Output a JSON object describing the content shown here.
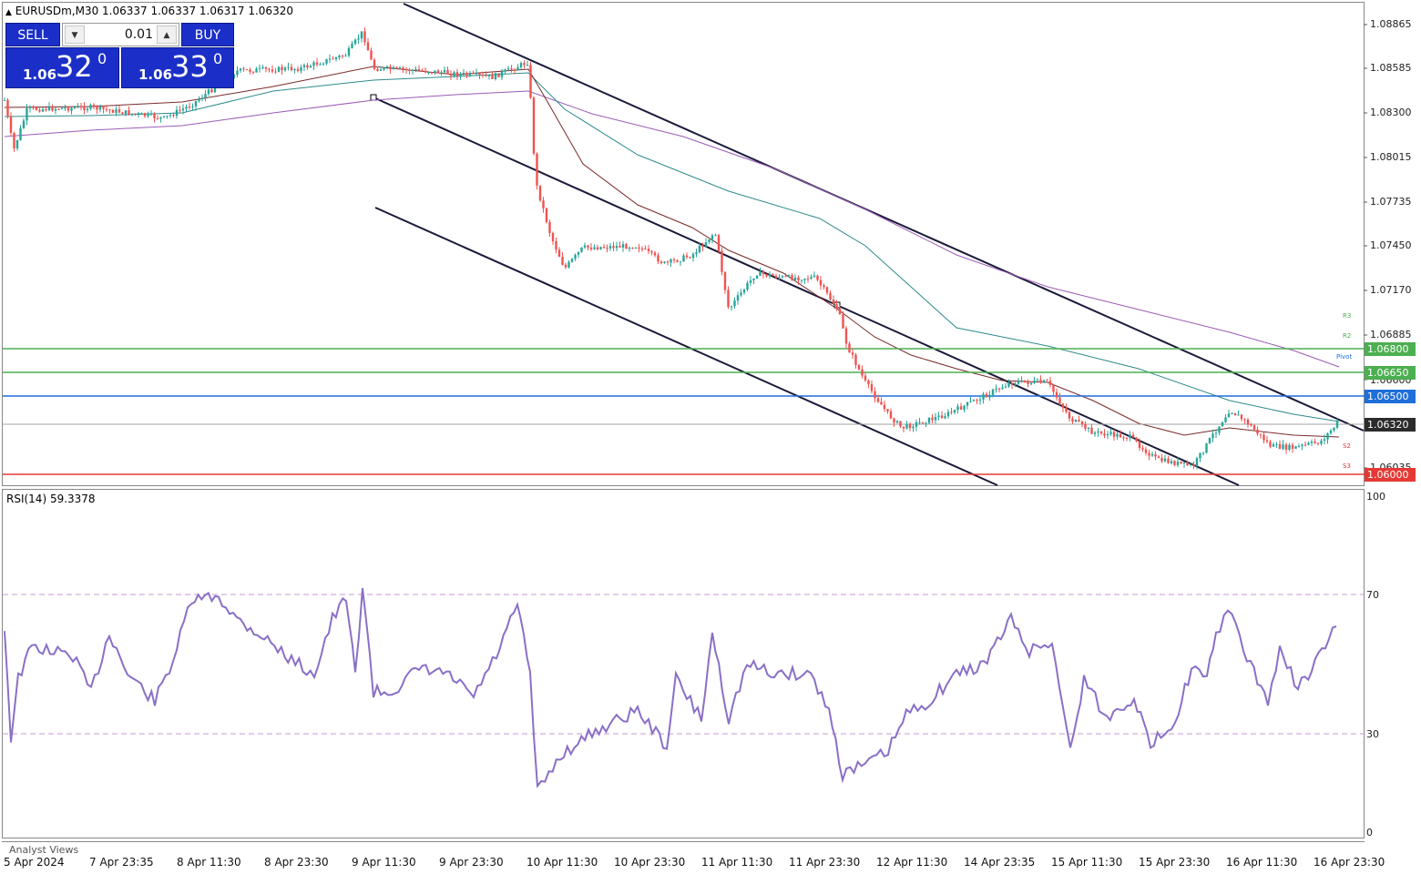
{
  "header": {
    "symbol_info": "EURUSDm,M30  1.06337 1.06337 1.06317 1.06320"
  },
  "trade_panel": {
    "sell_label": "SELL",
    "buy_label": "BUY",
    "lot": "0.01",
    "sell_price": {
      "prefix": "1.06",
      "big": "32",
      "sup": "0"
    },
    "buy_price": {
      "prefix": "1.06",
      "big": "33",
      "sup": "0"
    }
  },
  "price_axis": [
    "1.08865",
    "1.08585",
    "1.08300",
    "1.08015",
    "1.07735",
    "1.07450",
    "1.07170",
    "1.06885",
    "1.06600",
    "1.06035"
  ],
  "levels": [
    {
      "price": "1.06800",
      "color": "#4caf50"
    },
    {
      "price": "1.06650",
      "color": "#4caf50"
    },
    {
      "price": "1.06500",
      "color": "#1e6fd9"
    },
    {
      "price": "1.06320",
      "color": "#808080"
    },
    {
      "price": "1.06000",
      "color": "#e53935"
    }
  ],
  "pivot_labels": {
    "r3": "R3",
    "r2": "R2",
    "pivot": "Pivot",
    "s2": "S2",
    "s3": "S3"
  },
  "rsi": {
    "label": "RSI(14) 59.3378",
    "axis": [
      "100",
      "70",
      "30",
      "0"
    ],
    "color": "#8a6fc7"
  },
  "time_axis": [
    "5 Apr 2024",
    "7 Apr 23:35",
    "8 Apr 11:30",
    "8 Apr 23:30",
    "9 Apr 11:30",
    "9 Apr 23:30",
    "10 Apr 11:30",
    "10 Apr 23:30",
    "11 Apr 11:30",
    "11 Apr 23:30",
    "12 Apr 11:30",
    "14 Apr 23:35",
    "15 Apr 11:30",
    "15 Apr 23:30",
    "16 Apr 11:30",
    "16 Apr 23:30"
  ],
  "analyst_views": "Analyst Views",
  "colors": {
    "bull": "#26a69a",
    "bear": "#ef5350",
    "channel": "#1a1a3a",
    "ma_fast": "#7a2a2a",
    "ma_mid": "#2e8b8b",
    "ma_slow": "#9c5bb5"
  }
}
